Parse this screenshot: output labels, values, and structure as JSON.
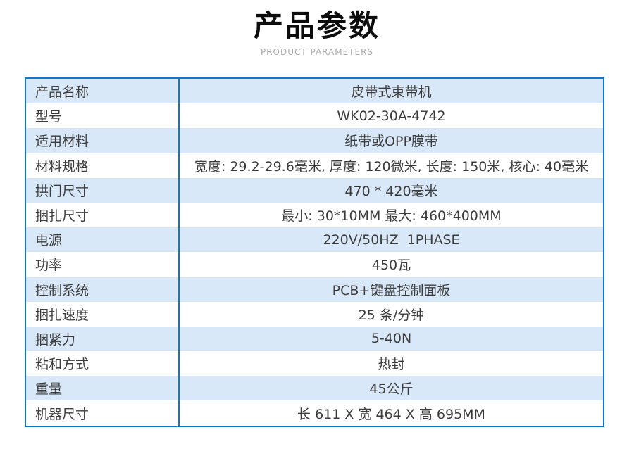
{
  "header": {
    "title": "产品参数",
    "subtitle": "PRODUCT PARAMETERS"
  },
  "table": {
    "rows": [
      {
        "label": "产品名称",
        "value": "皮带式束带机"
      },
      {
        "label": "型号",
        "value": "WK02-30A-4742"
      },
      {
        "label": "适用材料",
        "value": "纸带或OPP膜带"
      },
      {
        "label": "材料规格",
        "value": "宽度: 29.2-29.6毫米, 厚度: 120微米, 长度: 150米, 核心: 40毫米"
      },
      {
        "label": "拱门尺寸",
        "value": "470 * 420毫米"
      },
      {
        "label": "捆扎尺寸",
        "value": "最小: 30*10MM 最大: 460*400MM"
      },
      {
        "label": "电源",
        "value": "220V/50HZ  1PHASE"
      },
      {
        "label": "功率",
        "value": "450瓦"
      },
      {
        "label": "控制系统",
        "value": "PCB+键盘控制面板"
      },
      {
        "label": "捆扎速度",
        "value": "25 条/分钟"
      },
      {
        "label": "捆紧力",
        "value": "5-40N"
      },
      {
        "label": "粘和方式",
        "value": "热封"
      },
      {
        "label": "重量",
        "value": "45公斤"
      },
      {
        "label": "机器尺寸",
        "value": "长 611 X 宽 464 X 高 695MM"
      }
    ]
  },
  "colors": {
    "border_blue": "#1276c6",
    "row_alt_blue": "#d9e8f8",
    "text_dark": "#3c3c3c",
    "title_black": "#0d0d0d",
    "subtitle_gray": "#a9a9a9"
  }
}
